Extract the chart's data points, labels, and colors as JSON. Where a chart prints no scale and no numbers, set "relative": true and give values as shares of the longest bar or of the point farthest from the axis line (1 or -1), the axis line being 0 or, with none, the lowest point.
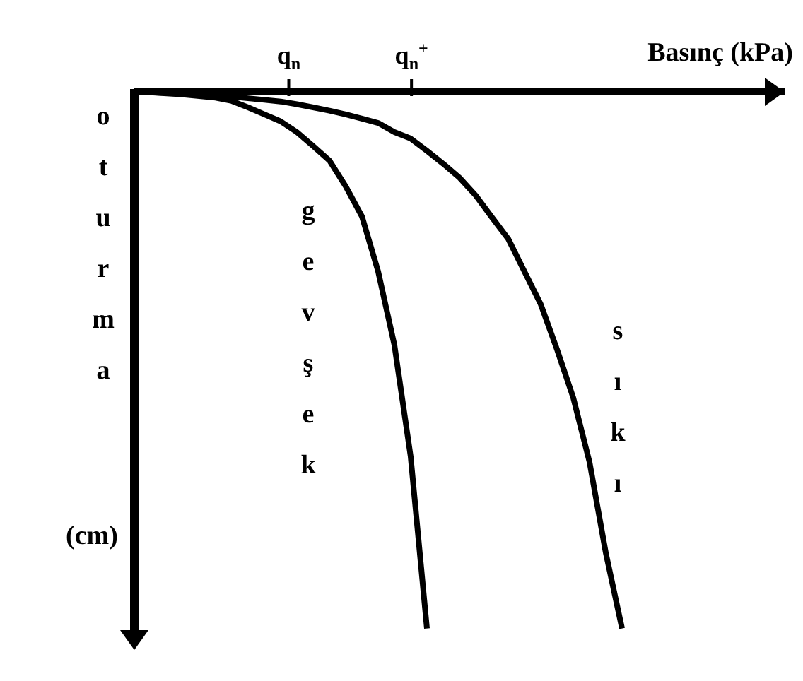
{
  "chart_data": {
    "type": "line",
    "relative": true,
    "xlabel": "Basınç (kPa)",
    "ylabel": "oturma",
    "annotations": [
      "(cm)",
      "q$_{n}$",
      "q$_{n}$$^{+}$"
    ],
    "categories": [
      null,
      null,
      null,
      null,
      null,
      null,
      null,
      null,
      null,
      null,
      null,
      null,
      null,
      null,
      null,
      null,
      null,
      null,
      null,
      null,
      null,
      null,
      null,
      null,
      null,
      null,
      null,
      null,
      null,
      null,
      null
    ],
    "series": [
      {
        "name": "gevşek",
        "color": "#000000",
        "values": [
          0,
          -0.001,
          -0.003,
          -0.005,
          -0.008,
          -0.011,
          -0.017,
          -0.029,
          -0.042,
          -0.055,
          -0.075,
          -0.101,
          -0.128,
          -0.176,
          -0.232,
          -0.335,
          -0.472,
          -0.68,
          -1,
          null,
          null,
          null,
          null,
          null,
          null,
          null,
          null,
          null,
          null,
          null,
          null
        ]
      },
      {
        "name": "sıkı",
        "color": "#000000",
        "values": [
          0,
          -0.001,
          -0.002,
          -0.003,
          -0.004,
          -0.006,
          -0.009,
          -0.012,
          -0.015,
          -0.018,
          -0.023,
          -0.029,
          -0.035,
          -0.042,
          -0.05,
          -0.058,
          -0.075,
          -0.087,
          -0.11,
          -0.134,
          -0.16,
          -0.193,
          -0.234,
          -0.274,
          -0.335,
          -0.396,
          -0.48,
          -0.57,
          -0.69,
          -0.859,
          -1
        ]
      }
    ]
  }
}
